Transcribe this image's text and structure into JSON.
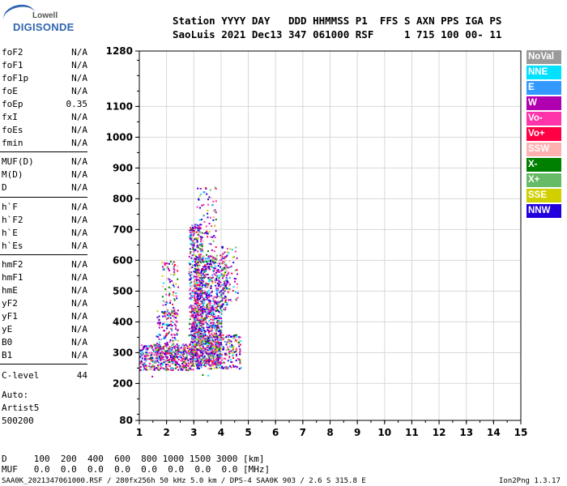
{
  "logo": {
    "line1": "Lowell",
    "line2": "DIGISONDE"
  },
  "header": {
    "labels": "Station YYYY DAY   DDD HHMMSS P1  FFS S AXN PPS IGA PS",
    "values": "SaoLuis 2021 Dec13 347 061000 RSF     1 715 100 00- 11"
  },
  "params_group1": [
    {
      "name": "foF2",
      "value": "N/A"
    },
    {
      "name": "foF1",
      "value": "N/A"
    },
    {
      "name": "foF1p",
      "value": "N/A"
    },
    {
      "name": "foE",
      "value": "N/A"
    },
    {
      "name": "foEp",
      "value": "0.35"
    },
    {
      "name": "fxI",
      "value": "N/A"
    },
    {
      "name": "foEs",
      "value": "N/A"
    },
    {
      "name": "fmin",
      "value": "N/A"
    }
  ],
  "params_group2": [
    {
      "name": "MUF(D)",
      "value": "N/A"
    },
    {
      "name": "M(D)",
      "value": "N/A"
    },
    {
      "name": "D",
      "value": "N/A"
    }
  ],
  "params_group3": [
    {
      "name": "h`F",
      "value": "N/A"
    },
    {
      "name": "h`F2",
      "value": "N/A"
    },
    {
      "name": "h`E",
      "value": "N/A"
    },
    {
      "name": "h`Es",
      "value": "N/A"
    }
  ],
  "params_group4": [
    {
      "name": "hmF2",
      "value": "N/A"
    },
    {
      "name": "hmF1",
      "value": "N/A"
    },
    {
      "name": "hmE",
      "value": "N/A"
    },
    {
      "name": "yF2",
      "value": "N/A"
    },
    {
      "name": "yF1",
      "value": "N/A"
    },
    {
      "name": "yE",
      "value": "N/A"
    },
    {
      "name": "B0",
      "value": "N/A"
    },
    {
      "name": "B1",
      "value": "N/A"
    }
  ],
  "clevel": {
    "name": "C-level",
    "value": "44"
  },
  "auto": {
    "line1": "Auto:",
    "line2": "Artist5",
    "line3": "500200"
  },
  "legend": [
    {
      "label": "NoVal",
      "color": "#9a9a9a"
    },
    {
      "label": "NNE",
      "color": "#00e0ff"
    },
    {
      "label": "E",
      "color": "#3399ff"
    },
    {
      "label": "W",
      "color": "#b000b0"
    },
    {
      "label": "Vo-",
      "color": "#ff33aa"
    },
    {
      "label": "Vo+",
      "color": "#ff0044"
    },
    {
      "label": "SSW",
      "color": "#ffb0b0"
    },
    {
      "label": "X-",
      "color": "#008000"
    },
    {
      "label": "X+",
      "color": "#66bb66"
    },
    {
      "label": "SSE",
      "color": "#d0d000"
    },
    {
      "label": "NNW",
      "color": "#2200dd"
    }
  ],
  "bottom": {
    "d_line": "D     100  200  400  600  800 1000 1500 3000 [km]",
    "muf_line": "MUF   0.0  0.0  0.0  0.0  0.0  0.0  0.0  0.0 [MHz]"
  },
  "footer": {
    "left": "SAA0K_2021347061000.RSF / 280fx256h 50 kHz 5.0 km / DPS-4 SAA0K 903 / 2.6 S 315.8 E",
    "right": "Ion2Png 1.3.17"
  },
  "chart_data": {
    "type": "scatter",
    "xlim": [
      1,
      15
    ],
    "ylim": [
      80,
      1280
    ],
    "x_ticks": [
      1,
      2,
      3,
      4,
      5,
      6,
      7,
      8,
      9,
      10,
      11,
      12,
      13,
      14,
      15
    ],
    "y_ticks": [
      80,
      200,
      300,
      400,
      500,
      600,
      700,
      800,
      900,
      1000,
      1100,
      1280
    ],
    "grid": true,
    "legend_placement": "right",
    "clusters": [
      {
        "x_range": [
          1.0,
          3.0
        ],
        "y_range": [
          245,
          330
        ],
        "count": 500
      },
      {
        "x_range": [
          1.6,
          2.4
        ],
        "y_range": [
          270,
          440
        ],
        "count": 180
      },
      {
        "x_range": [
          1.8,
          2.4
        ],
        "y_range": [
          420,
          600
        ],
        "count": 90
      },
      {
        "x_range": [
          2.8,
          3.3
        ],
        "y_range": [
          250,
          720
        ],
        "count": 450
      },
      {
        "x_range": [
          2.9,
          4.0
        ],
        "y_range": [
          260,
          450
        ],
        "count": 650
      },
      {
        "x_range": [
          3.0,
          4.2
        ],
        "y_range": [
          440,
          620
        ],
        "count": 500
      },
      {
        "x_range": [
          3.2,
          4.7
        ],
        "y_range": [
          250,
          360
        ],
        "count": 300
      },
      {
        "x_range": [
          3.1,
          3.8
        ],
        "y_range": [
          600,
          840
        ],
        "count": 80
      },
      {
        "x_range": [
          4.0,
          4.6
        ],
        "y_range": [
          470,
          650
        ],
        "count": 70
      }
    ],
    "isolated_points": [
      {
        "x": 1.45,
        "y": 225,
        "color": "W"
      },
      {
        "x": 3.3,
        "y": 230,
        "color": "X-"
      },
      {
        "x": 3.5,
        "y": 228,
        "color": "NNE"
      }
    ]
  }
}
